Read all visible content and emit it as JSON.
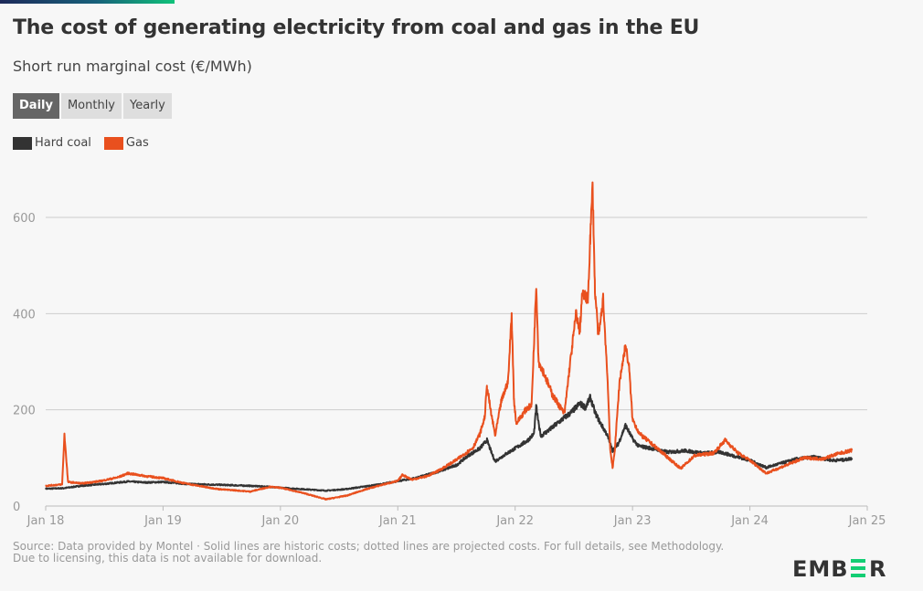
{
  "header": {
    "title": "The cost of generating electricity from coal and gas in the EU",
    "subtitle": "Short run marginal cost (€/MWh)"
  },
  "toggles": [
    {
      "label": "Daily",
      "active": true
    },
    {
      "label": "Monthly",
      "active": false
    },
    {
      "label": "Yearly",
      "active": false
    }
  ],
  "footer": {
    "source": "Source: Data provided by Montel · Solid lines are historic costs; dotted lines are projected costs. For full details, see Methodology.",
    "licensing": "Due to licensing, this data is not available for download."
  },
  "logo": {
    "text_left": "EMB",
    "text_mid": "E",
    "text_right": "R",
    "accent_color": "#13ce74",
    "dark_color": "#333333"
  },
  "chart_data": {
    "type": "line",
    "title": "The cost of generating electricity from coal and gas in the EU",
    "subtitle": "Short run marginal cost (€/MWh)",
    "xlabel": "",
    "ylabel": "€/MWh",
    "x_unit": "decimal year",
    "xlim": [
      2018.0,
      2025.0
    ],
    "ylim": [
      0,
      680
    ],
    "yticks": [
      0,
      200,
      400,
      600
    ],
    "xticks": [
      {
        "value": 2018,
        "label": "Jan 18"
      },
      {
        "value": 2019,
        "label": "Jan 19"
      },
      {
        "value": 2020,
        "label": "Jan 20"
      },
      {
        "value": 2021,
        "label": "Jan 21"
      },
      {
        "value": 2022,
        "label": "Jan 22"
      },
      {
        "value": 2023,
        "label": "Jan 23"
      },
      {
        "value": 2024,
        "label": "Jan 24"
      },
      {
        "value": 2025,
        "label": "Jan 25"
      }
    ],
    "grid": true,
    "legend_position": "top-left",
    "series": [
      {
        "name": "Hard coal",
        "color": "#333333",
        "points": [
          [
            2018.0,
            36
          ],
          [
            2018.15,
            37
          ],
          [
            2018.3,
            42
          ],
          [
            2018.5,
            46
          ],
          [
            2018.7,
            51
          ],
          [
            2018.85,
            49
          ],
          [
            2019.0,
            50
          ],
          [
            2019.2,
            46
          ],
          [
            2019.5,
            44
          ],
          [
            2019.74,
            42
          ],
          [
            2019.9,
            40
          ],
          [
            2020.0,
            38
          ],
          [
            2020.2,
            35
          ],
          [
            2020.39,
            32
          ],
          [
            2020.55,
            35
          ],
          [
            2020.7,
            40
          ],
          [
            2020.85,
            45
          ],
          [
            2021.0,
            52
          ],
          [
            2021.15,
            58
          ],
          [
            2021.35,
            72
          ],
          [
            2021.5,
            85
          ],
          [
            2021.6,
            105
          ],
          [
            2021.7,
            120
          ],
          [
            2021.76,
            137
          ],
          [
            2021.8,
            110
          ],
          [
            2021.83,
            93
          ],
          [
            2021.92,
            108
          ],
          [
            2022.0,
            120
          ],
          [
            2022.1,
            135
          ],
          [
            2022.16,
            150
          ],
          [
            2022.18,
            207
          ],
          [
            2022.2,
            170
          ],
          [
            2022.22,
            146
          ],
          [
            2022.3,
            160
          ],
          [
            2022.4,
            180
          ],
          [
            2022.48,
            195
          ],
          [
            2022.55,
            213
          ],
          [
            2022.6,
            205
          ],
          [
            2022.64,
            226
          ],
          [
            2022.68,
            195
          ],
          [
            2022.72,
            175
          ],
          [
            2022.78,
            150
          ],
          [
            2022.83,
            115
          ],
          [
            2022.88,
            130
          ],
          [
            2022.94,
            168
          ],
          [
            2023.0,
            140
          ],
          [
            2023.05,
            125
          ],
          [
            2023.2,
            118
          ],
          [
            2023.3,
            112
          ],
          [
            2023.45,
            115
          ],
          [
            2023.6,
            110
          ],
          [
            2023.75,
            112
          ],
          [
            2023.85,
            105
          ],
          [
            2024.0,
            95
          ],
          [
            2024.14,
            80
          ],
          [
            2024.25,
            88
          ],
          [
            2024.4,
            98
          ],
          [
            2024.55,
            102
          ],
          [
            2024.7,
            95
          ],
          [
            2024.8,
            96
          ],
          [
            2024.87,
            99
          ]
        ]
      },
      {
        "name": "Gas",
        "color": "#e9501e",
        "points": [
          [
            2018.0,
            42
          ],
          [
            2018.14,
            45
          ],
          [
            2018.16,
            148
          ],
          [
            2018.19,
            50
          ],
          [
            2018.31,
            47
          ],
          [
            2018.47,
            52
          ],
          [
            2018.62,
            60
          ],
          [
            2018.7,
            68
          ],
          [
            2018.86,
            62
          ],
          [
            2019.0,
            58
          ],
          [
            2019.17,
            48
          ],
          [
            2019.35,
            40
          ],
          [
            2019.48,
            35
          ],
          [
            2019.6,
            33
          ],
          [
            2019.74,
            30
          ],
          [
            2019.91,
            40
          ],
          [
            2020.0,
            38
          ],
          [
            2020.18,
            28
          ],
          [
            2020.3,
            20
          ],
          [
            2020.39,
            14
          ],
          [
            2020.57,
            22
          ],
          [
            2020.73,
            35
          ],
          [
            2020.88,
            45
          ],
          [
            2021.0,
            52
          ],
          [
            2021.04,
            65
          ],
          [
            2021.12,
            55
          ],
          [
            2021.25,
            62
          ],
          [
            2021.35,
            74
          ],
          [
            2021.5,
            96
          ],
          [
            2021.64,
            121
          ],
          [
            2021.7,
            150
          ],
          [
            2021.74,
            184
          ],
          [
            2021.76,
            250
          ],
          [
            2021.79,
            200
          ],
          [
            2021.83,
            146
          ],
          [
            2021.88,
            216
          ],
          [
            2021.94,
            260
          ],
          [
            2021.97,
            400
          ],
          [
            2021.99,
            220
          ],
          [
            2022.01,
            172
          ],
          [
            2022.09,
            200
          ],
          [
            2022.14,
            210
          ],
          [
            2022.18,
            461
          ],
          [
            2022.2,
            300
          ],
          [
            2022.24,
            279
          ],
          [
            2022.32,
            230
          ],
          [
            2022.42,
            192
          ],
          [
            2022.46,
            280
          ],
          [
            2022.52,
            402
          ],
          [
            2022.55,
            360
          ],
          [
            2022.57,
            440
          ],
          [
            2022.62,
            430
          ],
          [
            2022.64,
            560
          ],
          [
            2022.66,
            664
          ],
          [
            2022.68,
            450
          ],
          [
            2022.71,
            350
          ],
          [
            2022.75,
            430
          ],
          [
            2022.79,
            250
          ],
          [
            2022.81,
            120
          ],
          [
            2022.83,
            78
          ],
          [
            2022.85,
            120
          ],
          [
            2022.89,
            260
          ],
          [
            2022.94,
            334
          ],
          [
            2022.97,
            290
          ],
          [
            2023.0,
            180
          ],
          [
            2023.06,
            150
          ],
          [
            2023.22,
            118
          ],
          [
            2023.41,
            78
          ],
          [
            2023.53,
            105
          ],
          [
            2023.69,
            110
          ],
          [
            2023.79,
            137
          ],
          [
            2023.9,
            110
          ],
          [
            2024.0,
            95
          ],
          [
            2024.14,
            68
          ],
          [
            2024.31,
            85
          ],
          [
            2024.46,
            100
          ],
          [
            2024.62,
            98
          ],
          [
            2024.74,
            108
          ],
          [
            2024.87,
            116
          ]
        ]
      }
    ]
  }
}
